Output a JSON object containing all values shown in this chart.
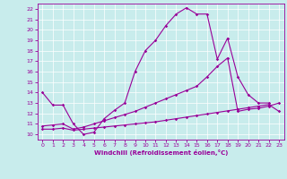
{
  "xlabel": "Windchill (Refroidissement éolien,°C)",
  "bg_color": "#c8ecec",
  "line_color": "#990099",
  "xlim": [
    -0.5,
    23.5
  ],
  "ylim": [
    9.5,
    22.5
  ],
  "yticks": [
    10,
    11,
    12,
    13,
    14,
    15,
    16,
    17,
    18,
    19,
    20,
    21,
    22
  ],
  "xticks": [
    0,
    1,
    2,
    3,
    4,
    5,
    6,
    7,
    8,
    9,
    10,
    11,
    12,
    13,
    14,
    15,
    16,
    17,
    18,
    19,
    20,
    21,
    22,
    23
  ],
  "line1_x": [
    0,
    1,
    2,
    3,
    4,
    5,
    6,
    7,
    8,
    9,
    10,
    11,
    12,
    13,
    14,
    15,
    16,
    17,
    18,
    19,
    20,
    21,
    22
  ],
  "line1_y": [
    14.0,
    12.8,
    12.8,
    11.0,
    10.0,
    10.2,
    11.5,
    12.3,
    13.0,
    16.0,
    18.0,
    19.0,
    20.4,
    21.5,
    22.1,
    21.5,
    21.5,
    17.2,
    19.2,
    15.5,
    13.8,
    13.0,
    13.0
  ],
  "line2_x": [
    0,
    1,
    2,
    3,
    4,
    5,
    6,
    7,
    8,
    9,
    10,
    11,
    12,
    13,
    14,
    15,
    16,
    17,
    18,
    19,
    20,
    21,
    22,
    23
  ],
  "line2_y": [
    10.5,
    10.5,
    10.6,
    10.4,
    10.5,
    10.6,
    10.7,
    10.8,
    10.9,
    11.0,
    11.1,
    11.2,
    11.35,
    11.5,
    11.65,
    11.8,
    11.95,
    12.1,
    12.25,
    12.4,
    12.55,
    12.7,
    12.85,
    12.2
  ],
  "line3_x": [
    0,
    1,
    2,
    3,
    4,
    5,
    6,
    7,
    8,
    9,
    10,
    11,
    12,
    13,
    14,
    15,
    16,
    17,
    18,
    19,
    20,
    21,
    22,
    23
  ],
  "line3_y": [
    10.8,
    10.9,
    11.0,
    10.5,
    10.7,
    11.0,
    11.3,
    11.6,
    11.9,
    12.2,
    12.6,
    13.0,
    13.4,
    13.8,
    14.2,
    14.6,
    15.5,
    16.5,
    17.3,
    12.2,
    12.4,
    12.5,
    12.7,
    13.0
  ]
}
